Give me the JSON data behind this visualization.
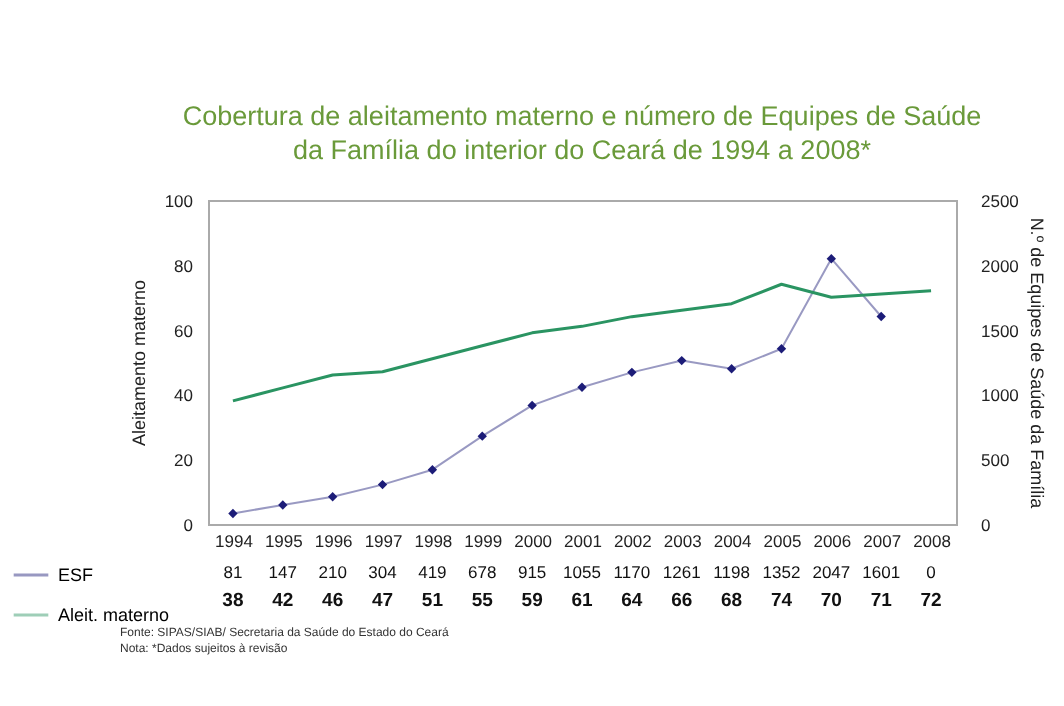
{
  "chart_data": {
    "type": "line",
    "title": "Cobertura de aleitamento materno e número de Equipes de Saúde da Família do interior do Ceará de 1994 a 2008*",
    "categories": [
      "1994",
      "1995",
      "1996",
      "1997",
      "1998",
      "1999",
      "2000",
      "2001",
      "2002",
      "2003",
      "2004",
      "2005",
      "2006",
      "2007",
      "2008"
    ],
    "series": [
      {
        "name": "ESF",
        "color": "#1c1c78",
        "axis": "y2",
        "marker": "diamond",
        "values": [
          81,
          147,
          210,
          304,
          419,
          678,
          915,
          1055,
          1170,
          1261,
          1198,
          1352,
          2047,
          1601,
          null
        ],
        "value_labels": [
          "81",
          "147",
          "210",
          "304",
          "419",
          "678",
          "915",
          "1055",
          "1170",
          "1261",
          "1198",
          "1352",
          "2047",
          "1601",
          "0"
        ]
      },
      {
        "name": "Aleit. materno",
        "color": "#2a9462",
        "values": [
          38,
          42,
          46,
          47,
          51,
          55,
          59,
          61,
          64,
          66,
          68,
          74,
          70,
          71,
          72
        ]
      }
    ],
    "ylabel": "Aleitamento materno",
    "y2label": "N.º de Equipes de Saúde da Família",
    "ylim": [
      0,
      100
    ],
    "yticks": [
      0,
      20,
      40,
      60,
      80,
      100
    ],
    "y2lim": [
      0,
      2500
    ],
    "y2ticks": [
      0,
      500,
      1000,
      1500,
      2000,
      2500
    ],
    "data_labels": true,
    "legend": "bottom left",
    "annotations": [
      "Fonte: SIPAS/SIAB/ Secretaria da Saúde do Estado do Ceará",
      "Nota: *Dados sujeitos à revisão"
    ]
  }
}
